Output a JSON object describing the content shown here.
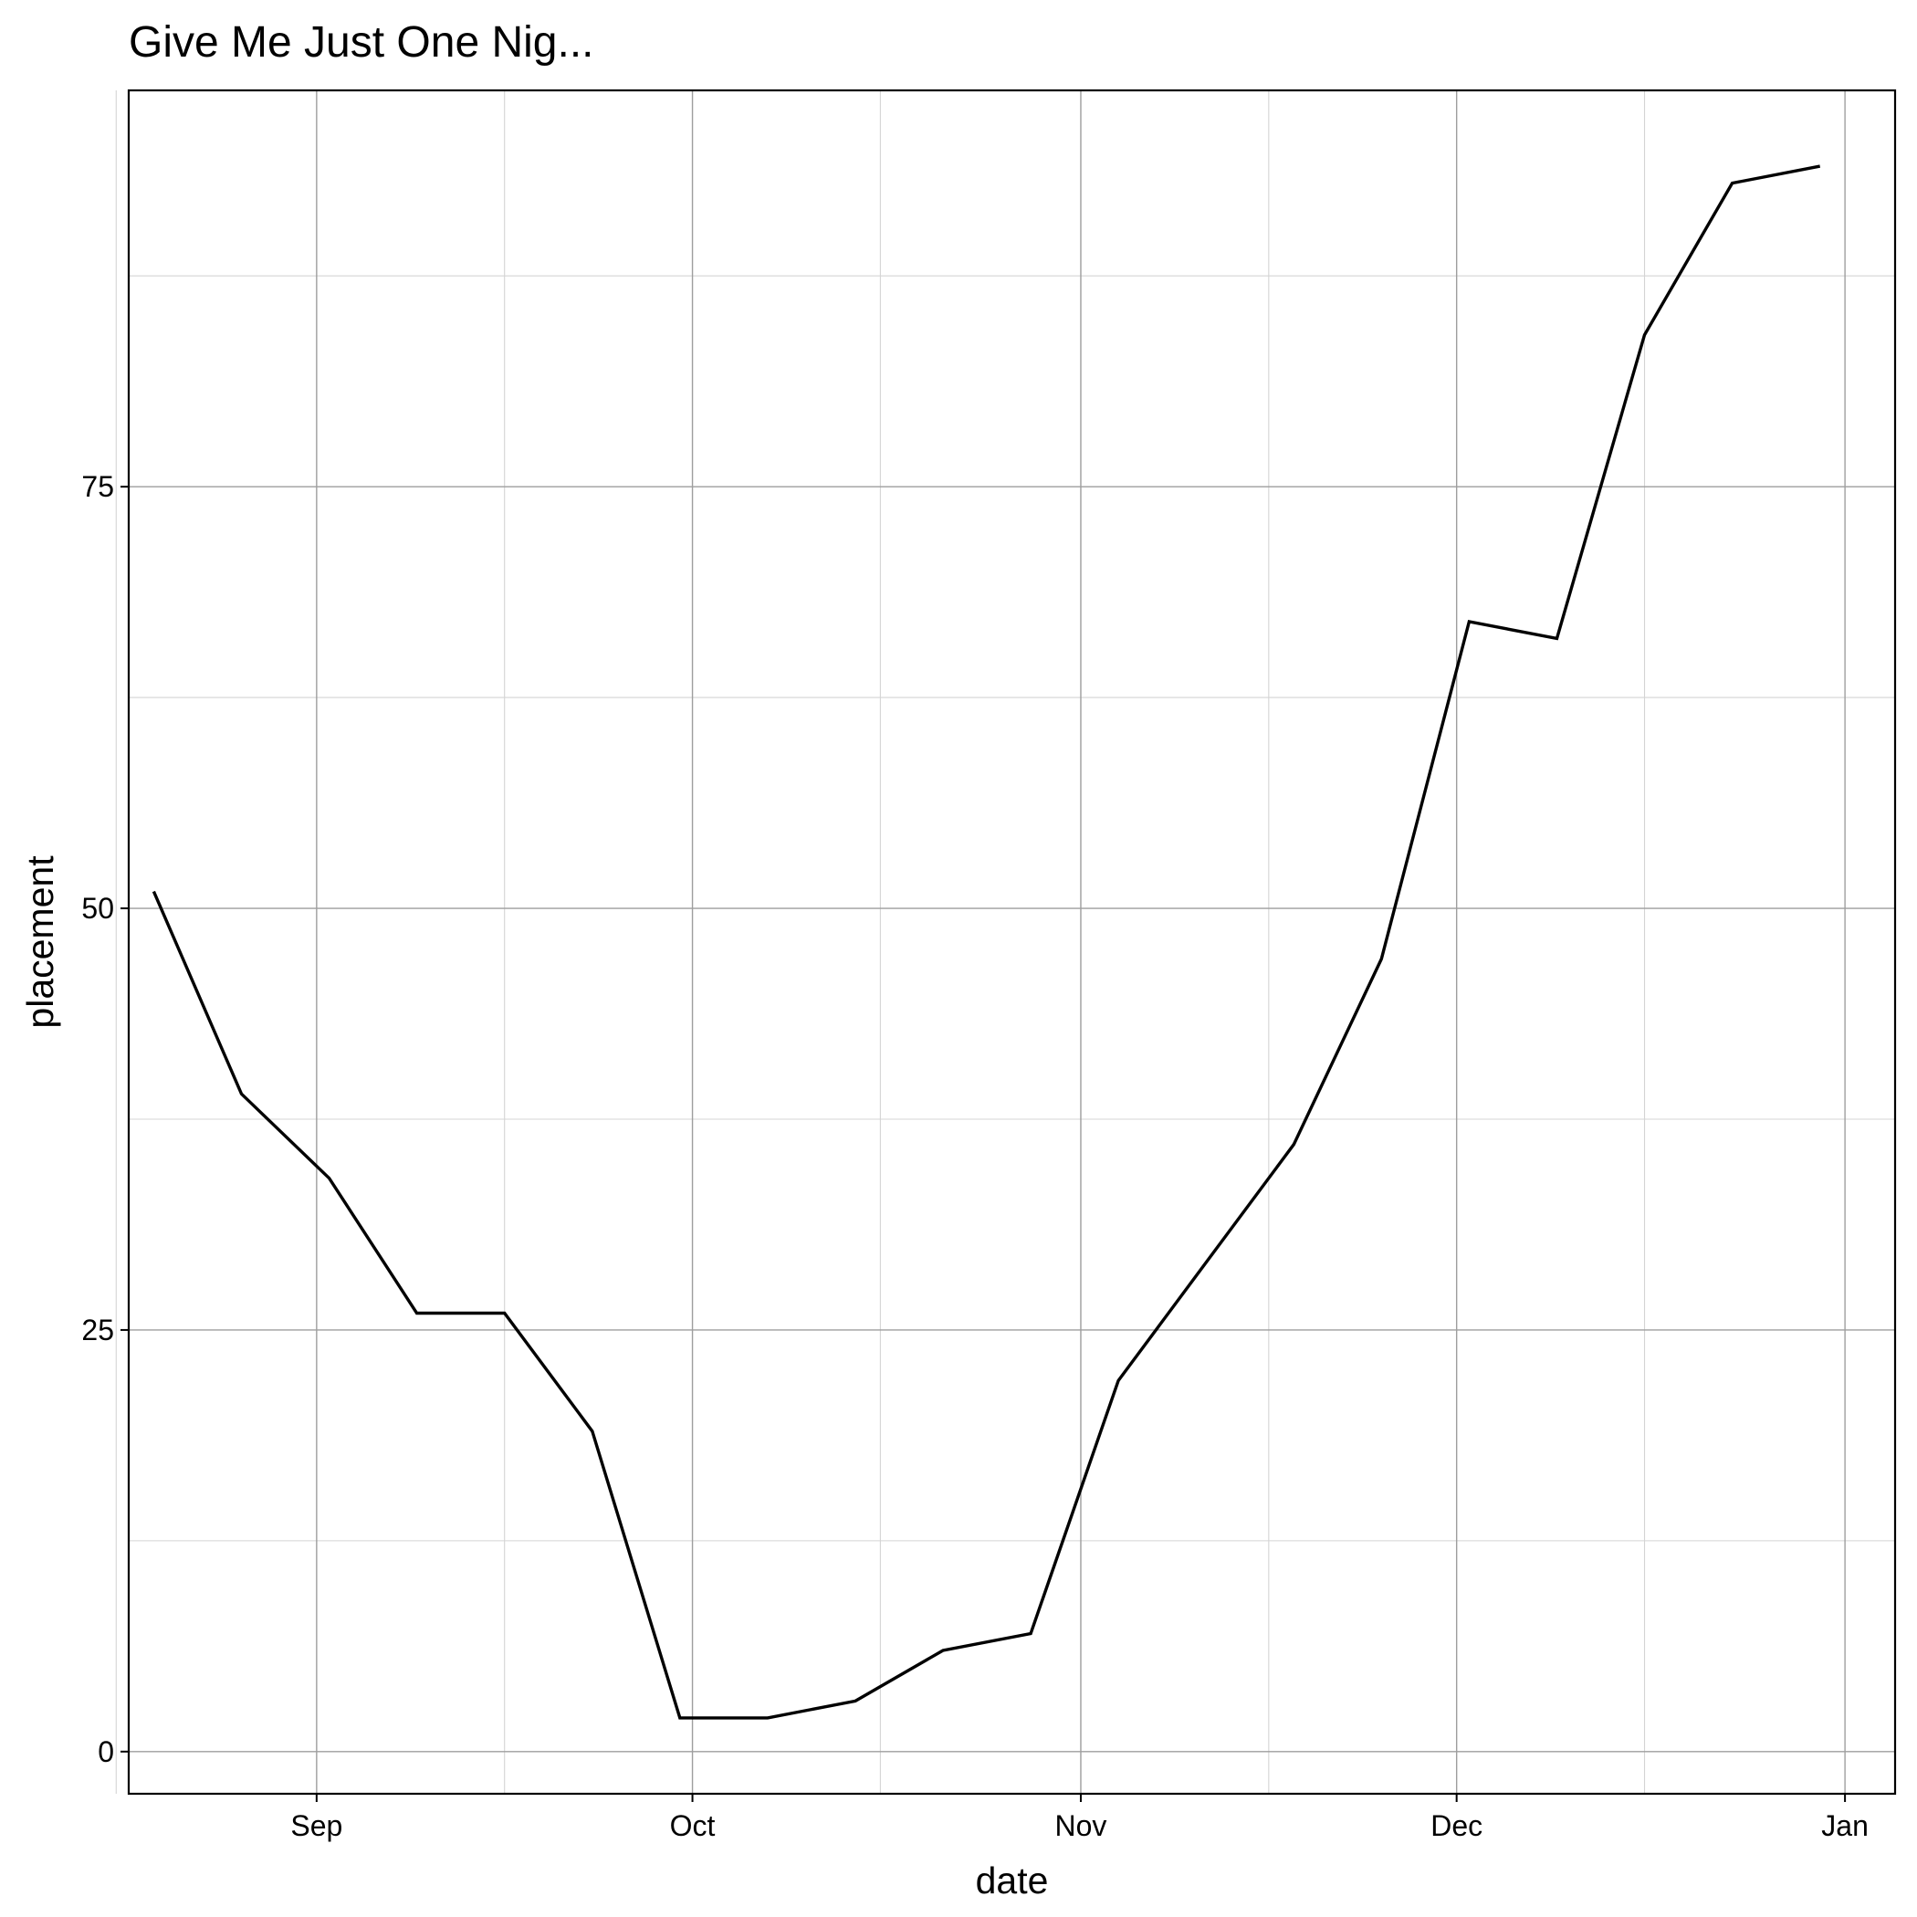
{
  "chart_data": {
    "type": "line",
    "title": "Give Me Just One Nig...",
    "xlabel": "date",
    "ylabel": "placement",
    "x_axis_type": "date",
    "xlim": [
      "2000-08-17",
      "2001-01-05"
    ],
    "ylim": [
      -2.5,
      98.5
    ],
    "x_ticks": [
      {
        "date": "2000-09-01",
        "label": "Sep"
      },
      {
        "date": "2000-10-01",
        "label": "Oct"
      },
      {
        "date": "2000-11-01",
        "label": "Nov"
      },
      {
        "date": "2000-12-01",
        "label": "Dec"
      },
      {
        "date": "2001-01-01",
        "label": "Jan"
      }
    ],
    "x_minor_ticks": [
      "2000-08-16",
      "2000-09-16",
      "2000-10-16",
      "2000-11-16",
      "2000-12-16"
    ],
    "y_ticks": [
      0,
      25,
      50,
      75
    ],
    "y_minor_ticks": [
      12.5,
      37.5,
      62.5,
      87.5
    ],
    "grid": true,
    "legend": "none",
    "line_color": "#000000",
    "series": [
      {
        "x": [
          "2000-08-19",
          "2000-08-26",
          "2000-09-02",
          "2000-09-09",
          "2000-09-16",
          "2000-09-23",
          "2000-09-30",
          "2000-10-07",
          "2000-10-14",
          "2000-10-21",
          "2000-10-28",
          "2000-11-04",
          "2000-11-11",
          "2000-11-18",
          "2000-11-25",
          "2000-12-02",
          "2000-12-09",
          "2000-12-16",
          "2000-12-23",
          "2000-12-30"
        ],
        "values": [
          51,
          39,
          34,
          26,
          26,
          19,
          2,
          2,
          3,
          6,
          7,
          22,
          29,
          36,
          47,
          67,
          66,
          84,
          93,
          94
        ]
      }
    ]
  }
}
